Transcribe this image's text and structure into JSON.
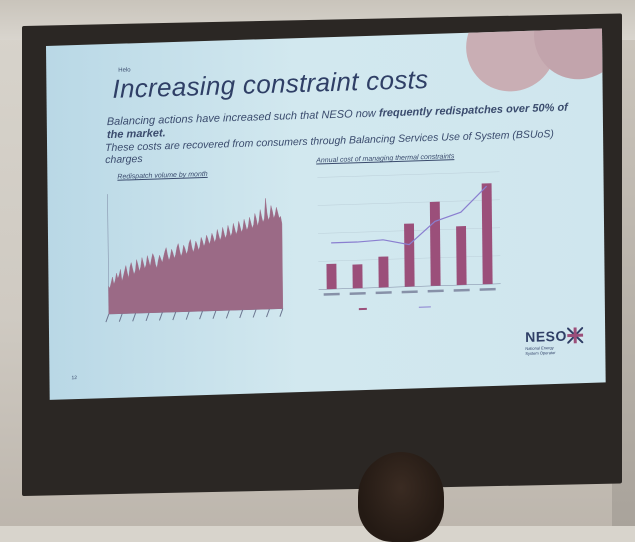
{
  "slide": {
    "section_tag": "Helo",
    "title": "Increasing constraint costs",
    "subtitle_plain": "Balancing actions have increased such that NESO now ",
    "subtitle_bold": "frequently redispatches over 50% of the market.",
    "subtitle2": "These costs are recovered from consumers through Balancing Services Use of System (BSUoS) charges",
    "left_chart_title": "Redispatch volume by month",
    "right_chart_title": "Annual cost of managing thermal constraints",
    "logo_text": "NESO",
    "logo_tagline": "National Energy System Operator",
    "page_number": "12"
  },
  "chart_data": [
    {
      "type": "area",
      "title": "Redispatch volume by month",
      "color": "#9b6a86",
      "x_count": 130,
      "values": [
        30,
        28,
        34,
        40,
        32,
        36,
        44,
        38,
        42,
        48,
        35,
        40,
        46,
        52,
        44,
        38,
        50,
        55,
        48,
        42,
        46,
        58,
        52,
        45,
        50,
        60,
        54,
        48,
        52,
        62,
        56,
        50,
        58,
        64,
        60,
        52,
        48,
        56,
        62,
        58,
        54,
        60,
        66,
        70,
        62,
        56,
        60,
        68,
        64,
        58,
        62,
        70,
        74,
        66,
        60,
        64,
        72,
        68,
        62,
        66,
        74,
        78,
        70,
        64,
        68,
        76,
        72,
        66,
        70,
        80,
        76,
        70,
        74,
        82,
        78,
        72,
        76,
        84,
        80,
        74,
        78,
        88,
        82,
        76,
        80,
        90,
        84,
        78,
        82,
        92,
        86,
        80,
        84,
        94,
        88,
        82,
        86,
        96,
        90,
        84,
        88,
        98,
        92,
        86,
        90,
        100,
        94,
        88,
        92,
        104,
        98,
        90,
        96,
        108,
        100,
        94,
        98,
        120,
        104,
        96,
        100,
        112,
        106,
        98,
        102,
        110,
        104,
        98,
        100,
        92
      ],
      "ylim": [
        0,
        130
      ]
    },
    {
      "type": "bar",
      "title": "Annual cost of managing thermal constraints",
      "categories": [
        "2016/17",
        "2017/18",
        "2018/19",
        "2019/20",
        "2020/21",
        "2021/22",
        "2022/23"
      ],
      "series": [
        {
          "kind": "bar",
          "values": [
            0.18,
            0.17,
            0.22,
            0.45,
            0.6,
            0.42,
            0.72
          ],
          "color": "#9b4f7a"
        },
        {
          "kind": "line",
          "values": [
            0.33,
            0.33,
            0.34,
            0.3,
            0.46,
            0.52,
            0.7
          ],
          "color": "#8a7fd0"
        }
      ],
      "ylim": [
        0,
        0.8
      ]
    }
  ],
  "colors": {
    "slide_bg": "#cfe6ee",
    "title": "#2f3f66",
    "accent_blob": "#c9aeb4",
    "bar": "#9b4f7a",
    "line": "#8a7fd0"
  }
}
